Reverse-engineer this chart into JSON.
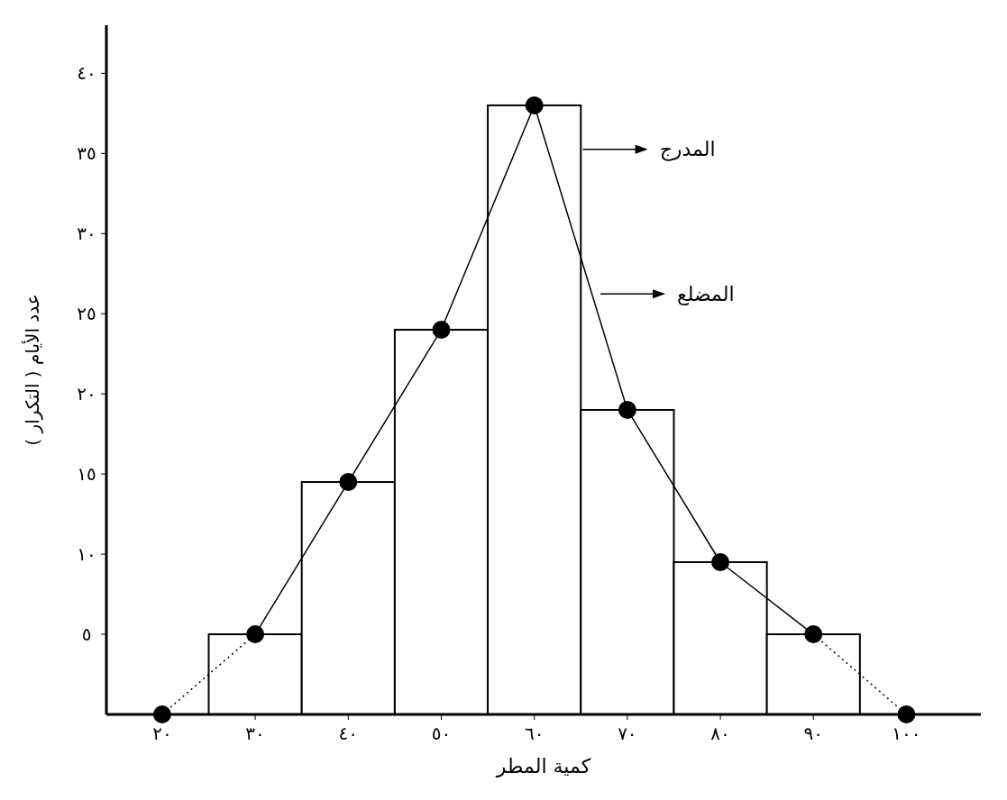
{
  "chart_data": {
    "type": "histogram",
    "xlabel": "كمية المطر",
    "ylabel": "عدد الأيام ( التكرار )",
    "xlim": [
      14,
      108
    ],
    "ylim": [
      0,
      43
    ],
    "xticks": [
      {
        "value": 20,
        "label": "٢٠"
      },
      {
        "value": 30,
        "label": "٣٠"
      },
      {
        "value": 40,
        "label": "٤٠"
      },
      {
        "value": 50,
        "label": "٥٠"
      },
      {
        "value": 60,
        "label": "٦٠"
      },
      {
        "value": 70,
        "label": "٧٠"
      },
      {
        "value": 80,
        "label": "٨٠"
      },
      {
        "value": 90,
        "label": "٩٠"
      },
      {
        "value": 100,
        "label": "١٠٠"
      }
    ],
    "yticks": [
      {
        "value": 5,
        "label": "٥"
      },
      {
        "value": 10,
        "label": "١٠"
      },
      {
        "value": 15,
        "label": "١٥"
      },
      {
        "value": 20,
        "label": "٢٠"
      },
      {
        "value": 25,
        "label": "٢٥"
      },
      {
        "value": 30,
        "label": "٣٠"
      },
      {
        "value": 35,
        "label": "٣٥"
      },
      {
        "value": 40,
        "label": "٤٠"
      }
    ],
    "grid": false,
    "series": [
      {
        "color": "#ffffff",
        "bins": [
          25,
          35,
          45,
          55,
          65,
          75,
          85,
          95
        ],
        "values": [
          5,
          14.5,
          24,
          38,
          19,
          9.5,
          5
        ]
      },
      {
        "type": "line",
        "color": "#000000",
        "marker": "circle",
        "line_style": "solid",
        "x": [
          30,
          40,
          50,
          60,
          70,
          80,
          90
        ],
        "values": [
          5,
          14.5,
          24,
          38,
          19,
          9.5,
          5
        ]
      },
      {
        "type": "line",
        "color": "#000000",
        "marker": "none",
        "line_style": "dotted",
        "x": [
          20,
          30,
          60,
          90,
          100
        ],
        "values": [
          0,
          5,
          null,
          5,
          0
        ]
      },
      {
        "type": "scatter",
        "color": "#000000",
        "marker": "circle",
        "x": [
          20,
          100
        ],
        "values": [
          0,
          0
        ]
      }
    ],
    "annotations": [
      "المدرج",
      "المضلع"
    ]
  }
}
